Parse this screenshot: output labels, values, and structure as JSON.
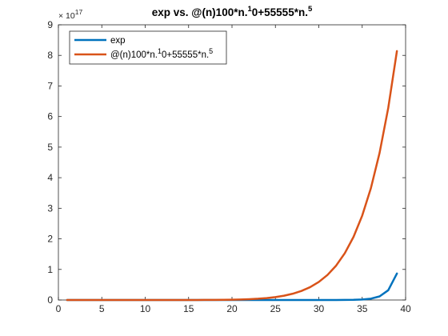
{
  "chart_data": {
    "type": "line",
    "title": "exp vs. @(n)100*n.^10+55555*n.^5",
    "title_parts": {
      "a": "exp vs. @(n)100*n.",
      "b": "1",
      "c": "0+55555*n.",
      "d": "5"
    },
    "xlabel": "",
    "ylabel": "",
    "xlim": [
      0,
      40
    ],
    "ylim": [
      0,
      9e+17
    ],
    "x_ticks": [
      "0",
      "5",
      "10",
      "15",
      "20",
      "25",
      "30",
      "35",
      "40"
    ],
    "y_ticks": [
      "0",
      "1",
      "2",
      "3",
      "4",
      "5",
      "6",
      "7",
      "8",
      "9"
    ],
    "y_exponent": {
      "base": "× 10",
      "power": "17"
    },
    "legend": {
      "placement": "top-left",
      "entries": [
        {
          "a": "exp",
          "b": "",
          "c": "",
          "d": ""
        },
        {
          "a": "@(n)100*n.",
          "b": "1",
          "c": "0+55555*n.",
          "d": "5"
        }
      ]
    },
    "series": [
      {
        "name": "exp",
        "color": "#0072bd",
        "x": [
          1,
          2,
          3,
          4,
          5,
          6,
          7,
          8,
          9,
          10,
          11,
          12,
          13,
          14,
          15,
          16,
          17,
          18,
          19,
          20,
          21,
          22,
          23,
          24,
          25,
          26,
          27,
          28,
          29,
          30,
          31,
          32,
          33,
          34,
          35,
          36,
          37,
          38,
          39
        ],
        "y": [
          2.718,
          7.389,
          20.09,
          54.6,
          148.4,
          403.4,
          1097.0,
          2981.0,
          8103.0,
          22030.0,
          59870.0,
          162800.0,
          442400.0,
          1203000.0,
          3269000.0,
          8886000.0,
          24150000.0,
          65660000.0,
          178500000.0,
          485200000.0,
          1319000000.0,
          3585000000.0,
          9745000000.0,
          26490000000.0,
          72000000000.0,
          195700000000.0,
          532000000000.0,
          1446000000000.0,
          3931000000000.0,
          10690000000000.0,
          29050000000000.0,
          78960000000000.0,
          214600000000000.0,
          583500000000000.0,
          1586000000000000.0,
          4311000000000000.0,
          1.172e+16,
          3.186e+16,
          8.659e+16
        ]
      },
      {
        "name": "@(n)100*n.^10+55555*n.^5",
        "color": "#d95319",
        "x": [
          1,
          2,
          3,
          4,
          5,
          6,
          7,
          8,
          9,
          10,
          11,
          12,
          13,
          14,
          15,
          16,
          17,
          18,
          19,
          20,
          21,
          22,
          23,
          24,
          25,
          26,
          27,
          28,
          29,
          30,
          31,
          32,
          33,
          34,
          35,
          36,
          37,
          38,
          39
        ],
        "y": [
          55655.0,
          1878000.0,
          19253000.0,
          160540000.0,
          1150000000.0,
          6489900000.0,
          29183000000.0,
          107560000000.0,
          349030000000.0,
          1000600000000.0,
          2593800000000.0,
          6193000000000.0,
          13786000000000.0,
          28925000000000.0,
          57665000000000.0,
          109960000000000.0,
          201600000000000.0,
          357020000000000.0,
          613110000000000.0,
          1024000000000000.0,
          1668000000000000.0,
          2656100000000000.0,
          4142600000000000.0,
          6340400000000000.0,
          9536800000000000.0,
          1.4117e+16,
          2.0589e+16,
          2.9619e+16,
          4.2071e+16,
          5.9049e+16,
          8.1963e+16,
          1.1259e+17,
          1.5313e+17,
          2.0634e+17,
          2.7585e+17,
          3.6562e+17,
          4.8086e+17,
          6.2805e+17,
          8.1403e+17
        ]
      }
    ]
  }
}
